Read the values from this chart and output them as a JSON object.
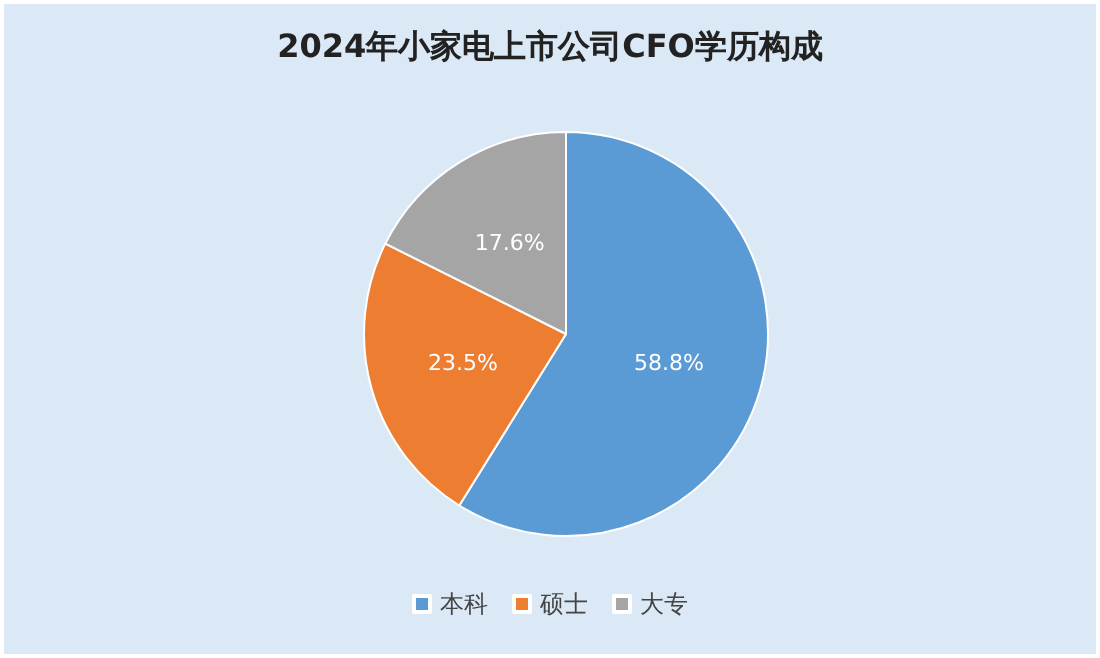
{
  "chart_data": {
    "type": "pie",
    "title": "2024年小家电上市公司CFO学历构成",
    "categories": [
      "本科",
      "硕士",
      "大专"
    ],
    "values": [
      58.8,
      23.5,
      17.6
    ],
    "colors": [
      "#5b9bd5",
      "#ed7d31",
      "#a5a5a5"
    ],
    "value_labels": [
      "58.8%",
      "23.5%",
      "17.6%"
    ],
    "legend": "bottom"
  }
}
